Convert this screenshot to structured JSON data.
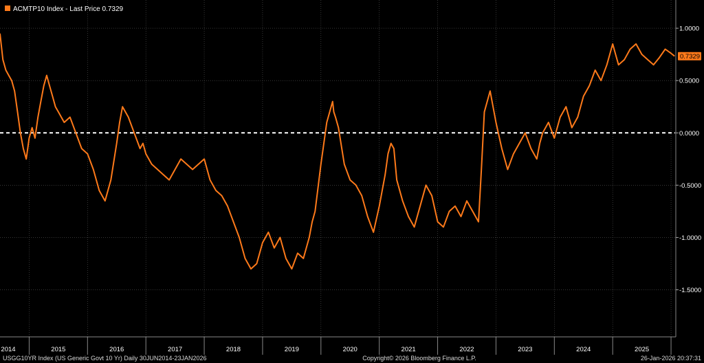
{
  "colors": {
    "background": "#000000",
    "series": "#ff7a1a",
    "grid": "#5a5a5a",
    "zero_line": "#ffffff",
    "text": "#ffffff"
  },
  "legend": {
    "label": "ACMTP10 Index - Last Price 0.7329"
  },
  "last_price_tag": "0.7329",
  "footer": {
    "left": "USGG10YR Index (US Generic Govt 10 Yr) Daily 30JUN2014-23JAN2026",
    "center": "Copyright© 2026 Bloomberg Finance L.P.",
    "right": "26-Jan-2026 20:37:31"
  },
  "chart_data": {
    "type": "line",
    "title": "",
    "xlabel": "",
    "ylabel": "",
    "ylim": [
      -1.95,
      1.27
    ],
    "xlim": [
      2014.5,
      2026.07
    ],
    "y_ticks": [
      "1.0000",
      "0.5000",
      "0.0000",
      "-0.5000",
      "-1.0000",
      "-1.5000"
    ],
    "y_tick_values": [
      1.0,
      0.5,
      0.0,
      -0.5,
      -1.0,
      -1.5
    ],
    "x_year_labels": [
      "2014",
      "2015",
      "2016",
      "2017",
      "2018",
      "2019",
      "2020",
      "2021",
      "2022",
      "2023",
      "2024",
      "2025"
    ],
    "grid": true,
    "zero_line": true,
    "legend_position": "top-left",
    "series": [
      {
        "name": "ACMTP10 Index",
        "x": [
          2014.5,
          2014.55,
          2014.6,
          2014.65,
          2014.7,
          2014.75,
          2014.8,
          2014.85,
          2014.9,
          2014.95,
          2015.0,
          2015.05,
          2015.1,
          2015.15,
          2015.2,
          2015.25,
          2015.3,
          2015.35,
          2015.4,
          2015.45,
          2015.5,
          2015.6,
          2015.7,
          2015.8,
          2015.9,
          2016.0,
          2016.1,
          2016.2,
          2016.3,
          2016.4,
          2016.5,
          2016.55,
          2016.6,
          2016.7,
          2016.8,
          2016.9,
          2016.95,
          2017.0,
          2017.1,
          2017.2,
          2017.3,
          2017.4,
          2017.5,
          2017.6,
          2017.7,
          2017.8,
          2017.9,
          2018.0,
          2018.1,
          2018.2,
          2018.3,
          2018.4,
          2018.5,
          2018.6,
          2018.7,
          2018.8,
          2018.9,
          2019.0,
          2019.1,
          2019.2,
          2019.3,
          2019.4,
          2019.5,
          2019.6,
          2019.7,
          2019.8,
          2019.85,
          2019.9,
          2020.0,
          2020.1,
          2020.2,
          2020.22,
          2020.25,
          2020.3,
          2020.4,
          2020.5,
          2020.6,
          2020.7,
          2020.8,
          2020.9,
          2021.0,
          2021.1,
          2021.15,
          2021.2,
          2021.25,
          2021.3,
          2021.4,
          2021.5,
          2021.6,
          2021.7,
          2021.8,
          2021.9,
          2022.0,
          2022.1,
          2022.2,
          2022.3,
          2022.4,
          2022.5,
          2022.6,
          2022.7,
          2022.75,
          2022.8,
          2022.9,
          2023.0,
          2023.1,
          2023.2,
          2023.3,
          2023.4,
          2023.5,
          2023.6,
          2023.7,
          2023.75,
          2023.8,
          2023.9,
          2024.0,
          2024.1,
          2024.2,
          2024.3,
          2024.4,
          2024.5,
          2024.6,
          2024.7,
          2024.8,
          2024.9,
          2025.0,
          2025.05,
          2025.1,
          2025.2,
          2025.3,
          2025.4,
          2025.5,
          2025.6,
          2025.7,
          2025.8,
          2025.9,
          2026.0,
          2026.06
        ],
        "values": [
          0.95,
          0.7,
          0.6,
          0.55,
          0.5,
          0.4,
          0.2,
          0.0,
          -0.15,
          -0.25,
          -0.05,
          0.05,
          -0.05,
          0.15,
          0.3,
          0.45,
          0.55,
          0.45,
          0.35,
          0.25,
          0.2,
          0.1,
          0.15,
          0.0,
          -0.15,
          -0.2,
          -0.35,
          -0.55,
          -0.65,
          -0.45,
          -0.1,
          0.1,
          0.25,
          0.15,
          0.0,
          -0.15,
          -0.1,
          -0.2,
          -0.3,
          -0.35,
          -0.4,
          -0.45,
          -0.35,
          -0.25,
          -0.3,
          -0.35,
          -0.3,
          -0.25,
          -0.45,
          -0.55,
          -0.6,
          -0.7,
          -0.85,
          -1.0,
          -1.2,
          -1.3,
          -1.25,
          -1.05,
          -0.95,
          -1.1,
          -1.0,
          -1.2,
          -1.3,
          -1.15,
          -1.2,
          -1.0,
          -0.85,
          -0.75,
          -0.3,
          0.1,
          0.3,
          0.2,
          0.15,
          0.05,
          -0.3,
          -0.45,
          -0.5,
          -0.6,
          -0.8,
          -0.95,
          -0.7,
          -0.4,
          -0.2,
          -0.1,
          -0.15,
          -0.45,
          -0.65,
          -0.8,
          -0.9,
          -0.7,
          -0.5,
          -0.6,
          -0.85,
          -0.9,
          -0.75,
          -0.7,
          -0.8,
          -0.65,
          -0.75,
          -0.85,
          -0.35,
          0.2,
          0.4,
          0.1,
          -0.15,
          -0.35,
          -0.2,
          -0.1,
          0.0,
          -0.15,
          -0.25,
          -0.1,
          0.0,
          0.1,
          -0.05,
          0.15,
          0.25,
          0.05,
          0.15,
          0.35,
          0.45,
          0.6,
          0.5,
          0.65,
          0.85,
          0.75,
          0.65,
          0.7,
          0.8,
          0.85,
          0.75,
          0.7,
          0.65,
          0.72,
          0.8,
          0.76,
          0.7329
        ]
      }
    ]
  }
}
